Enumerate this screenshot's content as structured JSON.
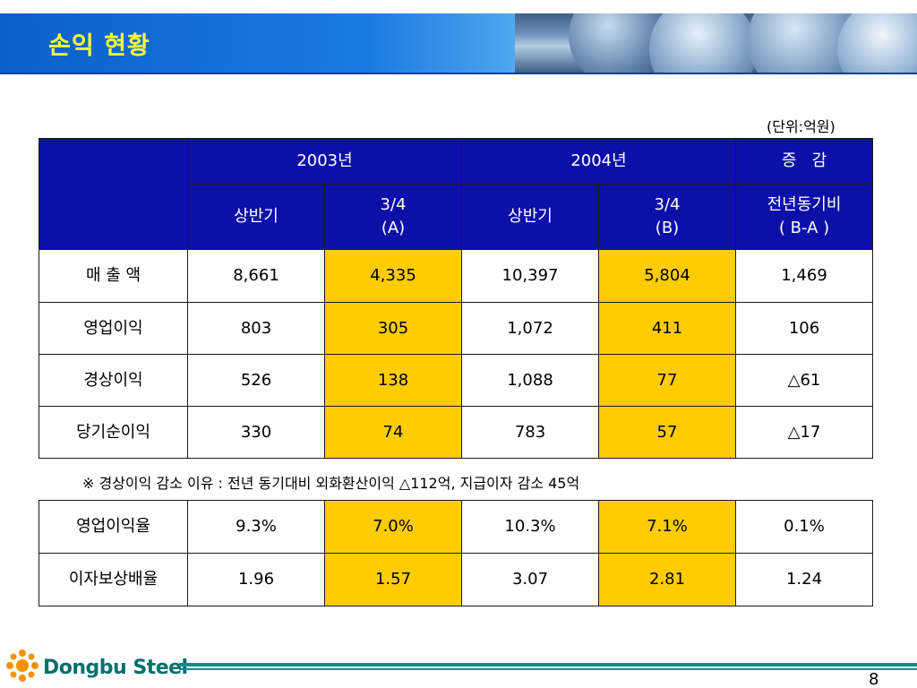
{
  "header": {
    "title": "손익 현황"
  },
  "unit_label": "(단위:억원)",
  "table1": {
    "group_headers": [
      "2003년",
      "2004년",
      "증   감"
    ],
    "sub_headers": [
      {
        "line1": "상반기",
        "line2": ""
      },
      {
        "line1": "3/4",
        "line2": "(A)"
      },
      {
        "line1": "상반기",
        "line2": ""
      },
      {
        "line1": "3/4",
        "line2": "(B)"
      },
      {
        "line1": "전년동기비",
        "line2": "( B-A )"
      }
    ],
    "rows": [
      {
        "label": "매 출 액",
        "cells": [
          "8,661",
          "4,335",
          "10,397",
          "5,804",
          "1,469"
        ]
      },
      {
        "label": "영업이익",
        "cells": [
          "803",
          "305",
          "1,072",
          "411",
          "106"
        ]
      },
      {
        "label": "경상이익",
        "cells": [
          "526",
          "138",
          "1,088",
          "77",
          "△61"
        ]
      },
      {
        "label": "당기순이익",
        "cells": [
          "330",
          "74",
          "783",
          "57",
          "△17"
        ]
      }
    ]
  },
  "note": "※ 경상이익 감소 이유 : 전년 동기대비 외화환산이익 △112억, 지급이자 감소 45억",
  "table2": {
    "rows": [
      {
        "label": "영업이익율",
        "cells": [
          "9.3%",
          "7.0%",
          "10.3%",
          "7.1%",
          "0.1%"
        ]
      },
      {
        "label": "이자보상배율",
        "cells": [
          "1.96",
          "1.57",
          "3.07",
          "2.81",
          "1.24"
        ]
      }
    ]
  },
  "footer": {
    "logo_text": "Dongbu Steel",
    "page_number": "8"
  },
  "colors": {
    "header_blue": "#0d10a8",
    "highlight": "#ffcc00",
    "title_yellow": "#ffff33",
    "brand_teal": "#00706d",
    "logo_orange": "#f39200"
  }
}
